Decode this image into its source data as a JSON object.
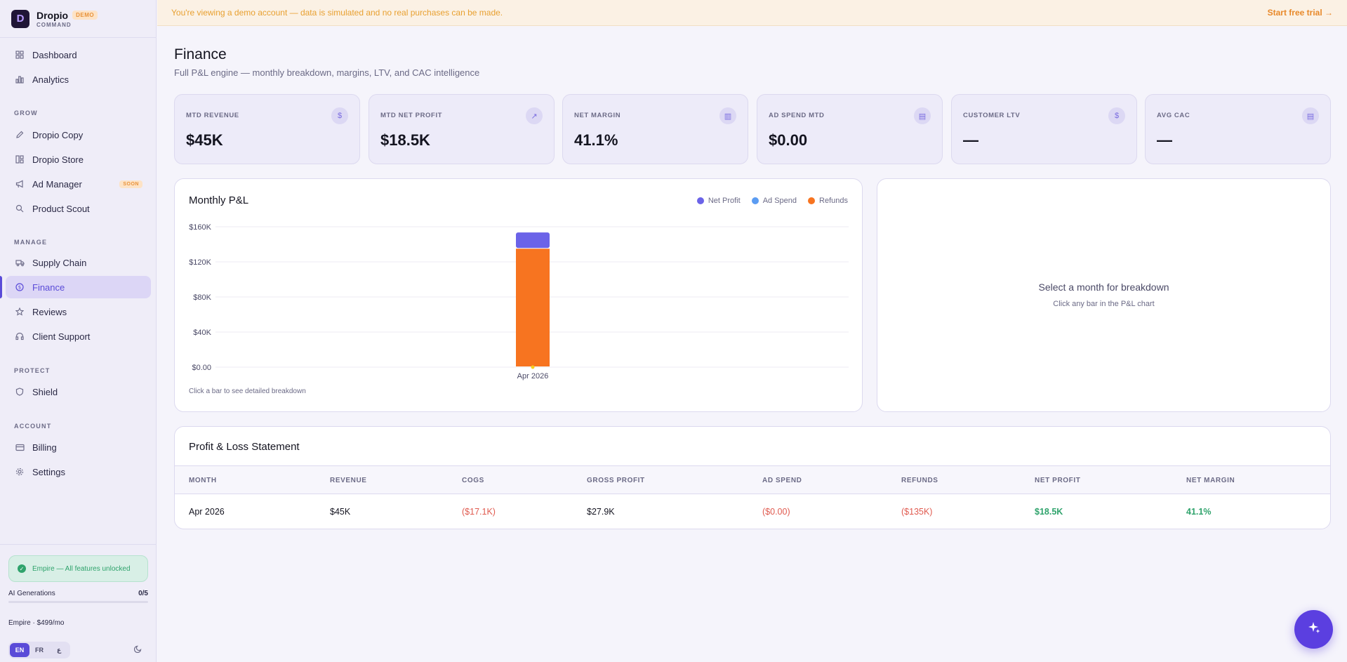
{
  "brand": {
    "name": "Dropio",
    "badge": "DEMO",
    "sub": "COMMAND",
    "logo_letter": "D"
  },
  "nav": {
    "dashboard": "Dashboard",
    "analytics": "Analytics",
    "sections": {
      "grow": "GROW",
      "manage": "MANAGE",
      "protect": "PROTECT",
      "account": "ACCOUNT"
    },
    "dropio_copy": "Dropio Copy",
    "dropio_store": "Dropio Store",
    "ad_manager": "Ad Manager",
    "ad_manager_badge": "SOON",
    "product_scout": "Product Scout",
    "supply_chain": "Supply Chain",
    "finance": "Finance",
    "reviews": "Reviews",
    "client_support": "Client Support",
    "shield": "Shield",
    "billing": "Billing",
    "settings": "Settings"
  },
  "footer": {
    "plan_status": "Empire — All features unlocked",
    "ai_label": "AI Generations",
    "ai_count": "0/5",
    "ai_used_fraction": 0,
    "plan_price": "Empire · $499/mo",
    "languages": [
      "EN",
      "FR",
      "ع"
    ],
    "active_language": "EN"
  },
  "banner": {
    "message": "You're viewing a demo account — data is simulated and no real purchases can be made.",
    "cta": "Start free trial →"
  },
  "page": {
    "title": "Finance",
    "subtitle": "Full P&L engine — monthly breakdown, margins, LTV, and CAC intelligence"
  },
  "kpis": [
    {
      "label": "MTD REVENUE",
      "value": "$45K",
      "icon": "dollar-icon"
    },
    {
      "label": "MTD NET PROFIT",
      "value": "$18.5K",
      "icon": "trending-up-icon"
    },
    {
      "label": "NET MARGIN",
      "value": "41.1%",
      "icon": "bar-chart-icon"
    },
    {
      "label": "AD SPEND MTD",
      "value": "$0.00",
      "icon": "receipt-icon"
    },
    {
      "label": "CUSTOMER LTV",
      "value": "—",
      "icon": "dollar-icon"
    },
    {
      "label": "AVG CAC",
      "value": "—",
      "icon": "receipt-icon"
    }
  ],
  "colors": {
    "accent": "#5a4bd8",
    "net_profit": "#6b63e8",
    "ad_spend": "#5b9cf2",
    "refunds": "#f77420",
    "positive": "#2fa36c",
    "negative": "#e05a4f"
  },
  "chart_card": {
    "title": "Monthly P&L",
    "hint": "Click a bar to see detailed breakdown"
  },
  "chart_data": {
    "type": "bar",
    "stacked": true,
    "categories": [
      "Apr 2026"
    ],
    "series": [
      {
        "name": "Refunds",
        "values": [
          135000
        ]
      },
      {
        "name": "Ad Spend",
        "values": [
          0
        ]
      },
      {
        "name": "Net Profit",
        "values": [
          18500
        ]
      }
    ],
    "yticks": [
      "$0.00",
      "$40K",
      "$80K",
      "$120K",
      "$160K"
    ],
    "ylim": [
      0,
      160000
    ],
    "legend": "top-right",
    "grid": true
  },
  "breakdown": {
    "title": "Select a month for breakdown",
    "subtitle": "Click any bar in the P&L chart"
  },
  "pl_table": {
    "title": "Profit & Loss Statement",
    "headers": [
      "MONTH",
      "REVENUE",
      "COGS",
      "GROSS PROFIT",
      "AD SPEND",
      "REFUNDS",
      "NET PROFIT",
      "NET MARGIN"
    ],
    "rows": [
      [
        "Apr 2026",
        "$45K",
        "($17.1K)",
        "$27.9K",
        "($0.00)",
        "($135K)",
        "$18.5K",
        "41.1%"
      ]
    ]
  }
}
